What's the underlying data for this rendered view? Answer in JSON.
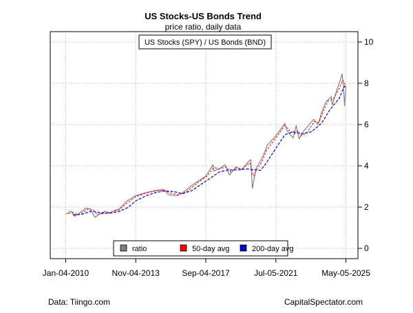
{
  "chart_data": {
    "type": "line",
    "title": "US Stocks-US Bonds Trend",
    "subtitle": "price ratio, daily data",
    "xlabel": "",
    "ylabel": "",
    "x_tick_labels": [
      "Jan-04-2010",
      "Nov-04-2013",
      "Sep-04-2017",
      "Jul-05-2021",
      "May-05-2025"
    ],
    "y_ticks": [
      0,
      2,
      4,
      6,
      8,
      10
    ],
    "ylim": [
      -0.5,
      10.5
    ],
    "xlim": [
      "2009-03-01",
      "2025-12-31"
    ],
    "y_axis_side": "right",
    "grid": true,
    "series_legend": {
      "text": "US Stocks (SPY) / US Bonds (BND)",
      "placement": "top-center"
    },
    "legend": {
      "placement": "bottom-center",
      "items": [
        {
          "label": "ratio",
          "color": "#808080"
        },
        {
          "label": "50-day avg",
          "color": "#ff0000"
        },
        {
          "label": "200-day avg",
          "color": "#0000cc"
        }
      ]
    },
    "series": [
      {
        "key": "ratio",
        "color": "#808080",
        "points": [
          [
            "2010-01-04",
            1.65
          ],
          [
            "2010-04-20",
            1.8
          ],
          [
            "2010-07-01",
            1.55
          ],
          [
            "2010-10-01",
            1.7
          ],
          [
            "2011-02-15",
            1.95
          ],
          [
            "2011-05-01",
            1.9
          ],
          [
            "2011-08-15",
            1.5
          ],
          [
            "2011-10-01",
            1.6
          ],
          [
            "2012-03-01",
            1.8
          ],
          [
            "2012-06-01",
            1.7
          ],
          [
            "2012-09-15",
            1.85
          ],
          [
            "2012-12-01",
            1.9
          ],
          [
            "2013-05-15",
            2.3
          ],
          [
            "2013-11-04",
            2.55
          ],
          [
            "2014-06-01",
            2.7
          ],
          [
            "2014-12-01",
            2.8
          ],
          [
            "2015-05-15",
            2.85
          ],
          [
            "2015-08-25",
            2.6
          ],
          [
            "2016-02-11",
            2.55
          ],
          [
            "2016-07-01",
            2.75
          ],
          [
            "2016-12-01",
            3.05
          ],
          [
            "2017-06-01",
            3.35
          ],
          [
            "2017-09-04",
            3.5
          ],
          [
            "2018-01-26",
            4.05
          ],
          [
            "2018-02-09",
            3.75
          ],
          [
            "2018-06-01",
            3.85
          ],
          [
            "2018-09-20",
            4.05
          ],
          [
            "2018-12-24",
            3.55
          ],
          [
            "2019-04-30",
            3.95
          ],
          [
            "2019-08-15",
            3.8
          ],
          [
            "2019-12-31",
            4.2
          ],
          [
            "2020-02-19",
            4.3
          ],
          [
            "2020-03-23",
            2.9
          ],
          [
            "2020-06-08",
            3.9
          ],
          [
            "2020-09-15",
            4.3
          ],
          [
            "2020-11-30",
            4.7
          ],
          [
            "2021-01-15",
            5.0
          ],
          [
            "2021-07-05",
            5.45
          ],
          [
            "2021-12-31",
            6.05
          ],
          [
            "2022-02-15",
            5.7
          ],
          [
            "2022-06-15",
            5.35
          ],
          [
            "2022-08-15",
            5.95
          ],
          [
            "2022-10-13",
            5.3
          ],
          [
            "2023-01-15",
            5.7
          ],
          [
            "2023-07-31",
            6.25
          ],
          [
            "2023-10-27",
            6.0
          ],
          [
            "2023-12-31",
            6.55
          ],
          [
            "2024-03-31",
            7.1
          ],
          [
            "2024-07-15",
            7.35
          ],
          [
            "2024-08-05",
            6.95
          ],
          [
            "2024-11-15",
            7.75
          ],
          [
            "2024-12-31",
            8.05
          ],
          [
            "2025-02-19",
            8.45
          ],
          [
            "2025-03-13",
            7.95
          ],
          [
            "2025-04-08",
            6.9
          ],
          [
            "2025-04-25",
            7.5
          ],
          [
            "2025-05-05",
            7.75
          ]
        ]
      },
      {
        "key": "50-day avg",
        "color": "#ff0000",
        "points": [
          [
            "2010-03-01",
            1.68
          ],
          [
            "2010-06-01",
            1.75
          ],
          [
            "2010-09-01",
            1.62
          ],
          [
            "2010-12-01",
            1.72
          ],
          [
            "2011-04-01",
            1.92
          ],
          [
            "2011-07-01",
            1.88
          ],
          [
            "2011-10-01",
            1.62
          ],
          [
            "2012-02-01",
            1.7
          ],
          [
            "2012-06-01",
            1.75
          ],
          [
            "2012-12-01",
            1.85
          ],
          [
            "2013-05-15",
            2.2
          ],
          [
            "2013-11-04",
            2.5
          ],
          [
            "2014-06-01",
            2.68
          ],
          [
            "2014-12-01",
            2.78
          ],
          [
            "2015-06-01",
            2.82
          ],
          [
            "2015-10-01",
            2.68
          ],
          [
            "2016-03-01",
            2.6
          ],
          [
            "2016-08-01",
            2.72
          ],
          [
            "2016-12-15",
            2.98
          ],
          [
            "2017-06-01",
            3.3
          ],
          [
            "2017-10-01",
            3.5
          ],
          [
            "2018-02-15",
            3.92
          ],
          [
            "2018-06-01",
            3.85
          ],
          [
            "2018-10-15",
            3.95
          ],
          [
            "2019-01-15",
            3.7
          ],
          [
            "2019-05-15",
            3.9
          ],
          [
            "2019-09-01",
            3.85
          ],
          [
            "2020-01-31",
            4.15
          ],
          [
            "2020-04-15",
            3.5
          ],
          [
            "2020-06-30",
            3.85
          ],
          [
            "2020-10-01",
            4.2
          ],
          [
            "2021-01-01",
            4.75
          ],
          [
            "2021-07-05",
            5.35
          ],
          [
            "2021-12-31",
            5.95
          ],
          [
            "2022-04-01",
            5.7
          ],
          [
            "2022-07-15",
            5.55
          ],
          [
            "2022-09-15",
            5.7
          ],
          [
            "2022-11-15",
            5.45
          ],
          [
            "2023-03-15",
            5.6
          ],
          [
            "2023-08-15",
            6.15
          ],
          [
            "2023-11-15",
            6.1
          ],
          [
            "2024-01-31",
            6.6
          ],
          [
            "2024-05-15",
            7.15
          ],
          [
            "2024-09-01",
            7.25
          ],
          [
            "2024-12-31",
            7.8
          ],
          [
            "2025-02-28",
            8.15
          ],
          [
            "2025-04-01",
            8.05
          ],
          [
            "2025-05-05",
            7.75
          ]
        ]
      },
      {
        "key": "200-day avg",
        "color": "#0000cc",
        "points": [
          [
            "2010-06-01",
            1.62
          ],
          [
            "2010-12-01",
            1.65
          ],
          [
            "2011-06-01",
            1.8
          ],
          [
            "2011-12-01",
            1.72
          ],
          [
            "2012-06-01",
            1.7
          ],
          [
            "2012-12-01",
            1.78
          ],
          [
            "2013-06-01",
            1.98
          ],
          [
            "2013-11-04",
            2.3
          ],
          [
            "2014-06-01",
            2.55
          ],
          [
            "2014-12-01",
            2.7
          ],
          [
            "2015-06-01",
            2.78
          ],
          [
            "2015-12-01",
            2.75
          ],
          [
            "2016-06-01",
            2.65
          ],
          [
            "2016-12-01",
            2.8
          ],
          [
            "2017-06-01",
            3.1
          ],
          [
            "2017-12-01",
            3.4
          ],
          [
            "2018-06-01",
            3.7
          ],
          [
            "2018-12-01",
            3.8
          ],
          [
            "2019-06-01",
            3.8
          ],
          [
            "2019-12-01",
            3.85
          ],
          [
            "2020-06-01",
            3.8
          ],
          [
            "2020-09-01",
            3.78
          ],
          [
            "2020-12-01",
            4.05
          ],
          [
            "2021-07-05",
            4.85
          ],
          [
            "2021-12-31",
            5.5
          ],
          [
            "2022-06-15",
            5.65
          ],
          [
            "2022-12-15",
            5.55
          ],
          [
            "2023-06-15",
            5.65
          ],
          [
            "2023-12-31",
            6.05
          ],
          [
            "2024-06-15",
            6.7
          ],
          [
            "2024-12-31",
            7.3
          ],
          [
            "2025-03-15",
            7.75
          ],
          [
            "2025-05-05",
            7.95
          ]
        ]
      }
    ]
  },
  "footer": {
    "left": "Data: Tiingo.com",
    "right": "CapitalSpectator.com"
  }
}
